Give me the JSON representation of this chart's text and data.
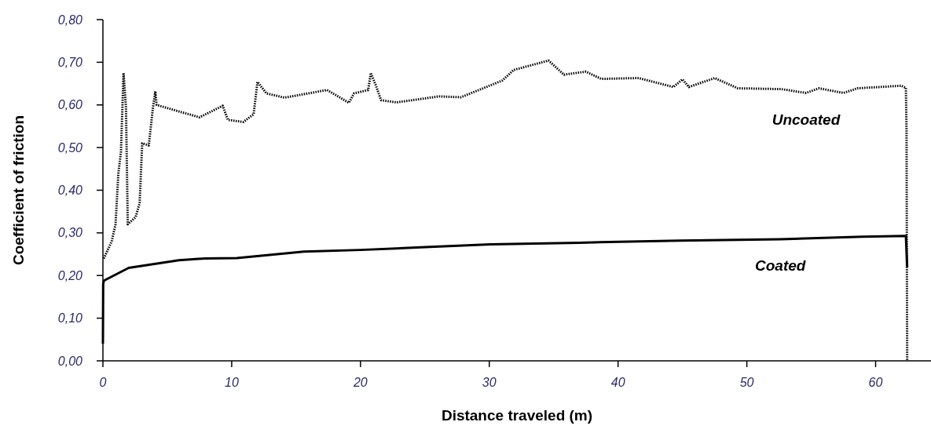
{
  "chart_data": {
    "type": "line",
    "xlabel": "Distance traveled (m)",
    "ylabel": "Coefficient of friction",
    "xlim": [
      0,
      64.3
    ],
    "ylim": [
      0,
      0.8
    ],
    "xticks": [
      0,
      10,
      20,
      30,
      40,
      50,
      60
    ],
    "yticks": [
      {
        "value": 0,
        "label": "0,00"
      },
      {
        "value": 0.1,
        "label": "0,10"
      },
      {
        "value": 0.2,
        "label": "0,20"
      },
      {
        "value": 0.3,
        "label": "0,30"
      },
      {
        "value": 0.4,
        "label": "0,40"
      },
      {
        "value": 0.5,
        "label": "0,50"
      },
      {
        "value": 0.6,
        "label": "0,60"
      },
      {
        "value": 0.7,
        "label": "0,70"
      },
      {
        "value": 0.8,
        "label": "0,80"
      }
    ],
    "grid": false,
    "legend": false,
    "series": [
      {
        "name": "Uncoated",
        "color": "#000000",
        "line_style": "dotted",
        "x": [
          0.07,
          0.68,
          0.98,
          1.2,
          1.4,
          1.6,
          1.79,
          1.93,
          2.54,
          2.85,
          3.05,
          3.56,
          3.87,
          4.07,
          4.17,
          6.1,
          7.5,
          9.3,
          9.7,
          10.9,
          11.7,
          12.0,
          12.7,
          14.1,
          17.4,
          19.1,
          19.5,
          20.6,
          20.8,
          21.2,
          21.6,
          22.8,
          26.1,
          27.8,
          31.0,
          31.9,
          34.6,
          35.8,
          37.5,
          38.7,
          41.6,
          44.3,
          45.0,
          45.5,
          47.5,
          49.3,
          52.7,
          54.6,
          55.6,
          57.5,
          58.6,
          62.0,
          62.35,
          62.4,
          62.45
        ],
        "values": [
          0.24,
          0.28,
          0.32,
          0.44,
          0.49,
          0.675,
          0.595,
          0.32,
          0.337,
          0.37,
          0.51,
          0.505,
          0.59,
          0.632,
          0.6,
          0.583,
          0.571,
          0.598,
          0.565,
          0.56,
          0.578,
          0.654,
          0.627,
          0.617,
          0.635,
          0.605,
          0.627,
          0.635,
          0.675,
          0.645,
          0.611,
          0.606,
          0.62,
          0.618,
          0.657,
          0.682,
          0.704,
          0.671,
          0.678,
          0.661,
          0.663,
          0.642,
          0.66,
          0.642,
          0.663,
          0.639,
          0.637,
          0.628,
          0.639,
          0.628,
          0.639,
          0.645,
          0.64,
          0.538,
          0.0
        ]
      },
      {
        "name": "Coated",
        "color": "#000000",
        "line_style": "solid",
        "x": [
          0,
          0.02,
          0.08,
          2.0,
          4.0,
          5.9,
          7.9,
          10.4,
          15.6,
          20.0,
          25.4,
          30.1,
          37.0,
          44.8,
          52.6,
          59.0,
          62.35,
          62.45
        ],
        "values": [
          0.04,
          0.18,
          0.188,
          0.218,
          0.227,
          0.236,
          0.24,
          0.241,
          0.256,
          0.26,
          0.267,
          0.273,
          0.277,
          0.282,
          0.285,
          0.291,
          0.293,
          0.22
        ]
      }
    ]
  }
}
